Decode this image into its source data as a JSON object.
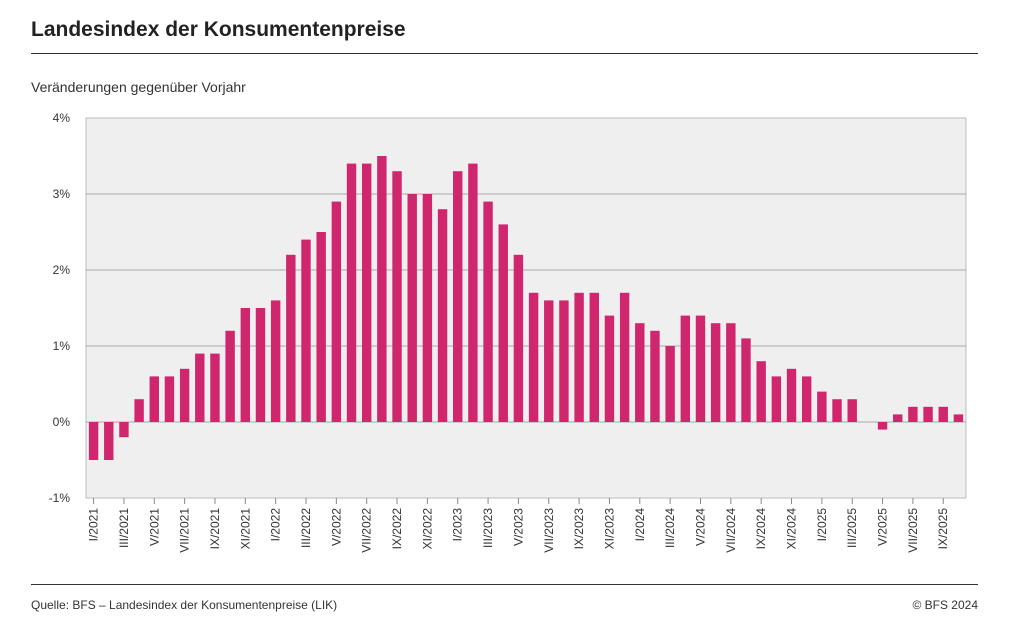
{
  "header": {
    "title": "Landesindex der Konsumentenpreise"
  },
  "footer": {
    "source": "Quelle: BFS – Landesindex der Konsumentenpreise (LIK)",
    "copyright": "© BFS 2024"
  },
  "chart_data": {
    "type": "bar",
    "title": "Landesindex der Konsumentenpreise",
    "subtitle": "Veränderungen gegenüber Vorjahr",
    "ylim": [
      -1,
      4
    ],
    "yticks": [
      "-1%",
      "0%",
      "1%",
      "2%",
      "3%",
      "4%"
    ],
    "ytick_values": [
      -1,
      0,
      1,
      2,
      3,
      4
    ],
    "grid": true,
    "bar_color": "#d0266e",
    "plot_background": "#efefef",
    "categories": [
      "I/2021",
      "II/2021",
      "III/2021",
      "IV/2021",
      "V/2021",
      "VI/2021",
      "VII/2021",
      "VIII/2021",
      "IX/2021",
      "X/2021",
      "XI/2021",
      "XII/2021",
      "I/2022",
      "II/2022",
      "III/2022",
      "IV/2022",
      "V/2022",
      "VI/2022",
      "VII/2022",
      "VIII/2022",
      "IX/2022",
      "X/2022",
      "XI/2022",
      "XII/2022",
      "I/2023",
      "II/2023",
      "III/2023",
      "IV/2023",
      "V/2023",
      "VI/2023",
      "VII/2023",
      "VIII/2023",
      "IX/2023",
      "X/2023",
      "XI/2023",
      "XII/2023",
      "I/2024",
      "II/2024",
      "III/2024",
      "IV/2024",
      "V/2024",
      "VI/2024",
      "VII/2024",
      "VIII/2024",
      "IX/2024",
      "X/2024",
      "XI/2024",
      "XII/2024",
      "I/2025",
      "II/2025",
      "III/2025",
      "IV/2025",
      "V/2025",
      "VI/2025",
      "VII/2025",
      "VIII/2025",
      "IX/2025",
      "X/2025"
    ],
    "xtick_labels": [
      "I/2021",
      "III/2021",
      "V/2021",
      "VII/2021",
      "IX/2021",
      "XI/2021",
      "I/2022",
      "III/2022",
      "V/2022",
      "VII/2022",
      "IX/2022",
      "XI/2022",
      "I/2023",
      "III/2023",
      "V/2023",
      "VII/2023",
      "IX/2023",
      "XI/2023",
      "I/2024",
      "III/2024",
      "V/2024",
      "VII/2024",
      "IX/2024",
      "XI/2024",
      "I/2025",
      "III/2025",
      "V/2025",
      "VII/2025",
      "IX/2025"
    ],
    "values": [
      -0.5,
      -0.5,
      -0.2,
      0.3,
      0.6,
      0.6,
      0.7,
      0.9,
      0.9,
      1.2,
      1.5,
      1.5,
      1.6,
      2.2,
      2.4,
      2.5,
      2.9,
      3.4,
      3.4,
      3.5,
      3.3,
      3.0,
      3.0,
      2.8,
      3.3,
      3.4,
      2.9,
      2.6,
      2.2,
      1.7,
      1.6,
      1.6,
      1.7,
      1.7,
      1.4,
      1.7,
      1.3,
      1.2,
      1.0,
      1.4,
      1.4,
      1.3,
      1.3,
      1.1,
      0.8,
      0.6,
      0.7,
      0.6,
      0.4,
      0.3,
      0.3,
      0.0,
      -0.1,
      0.1,
      0.2,
      0.2,
      0.2,
      0.1
    ]
  }
}
